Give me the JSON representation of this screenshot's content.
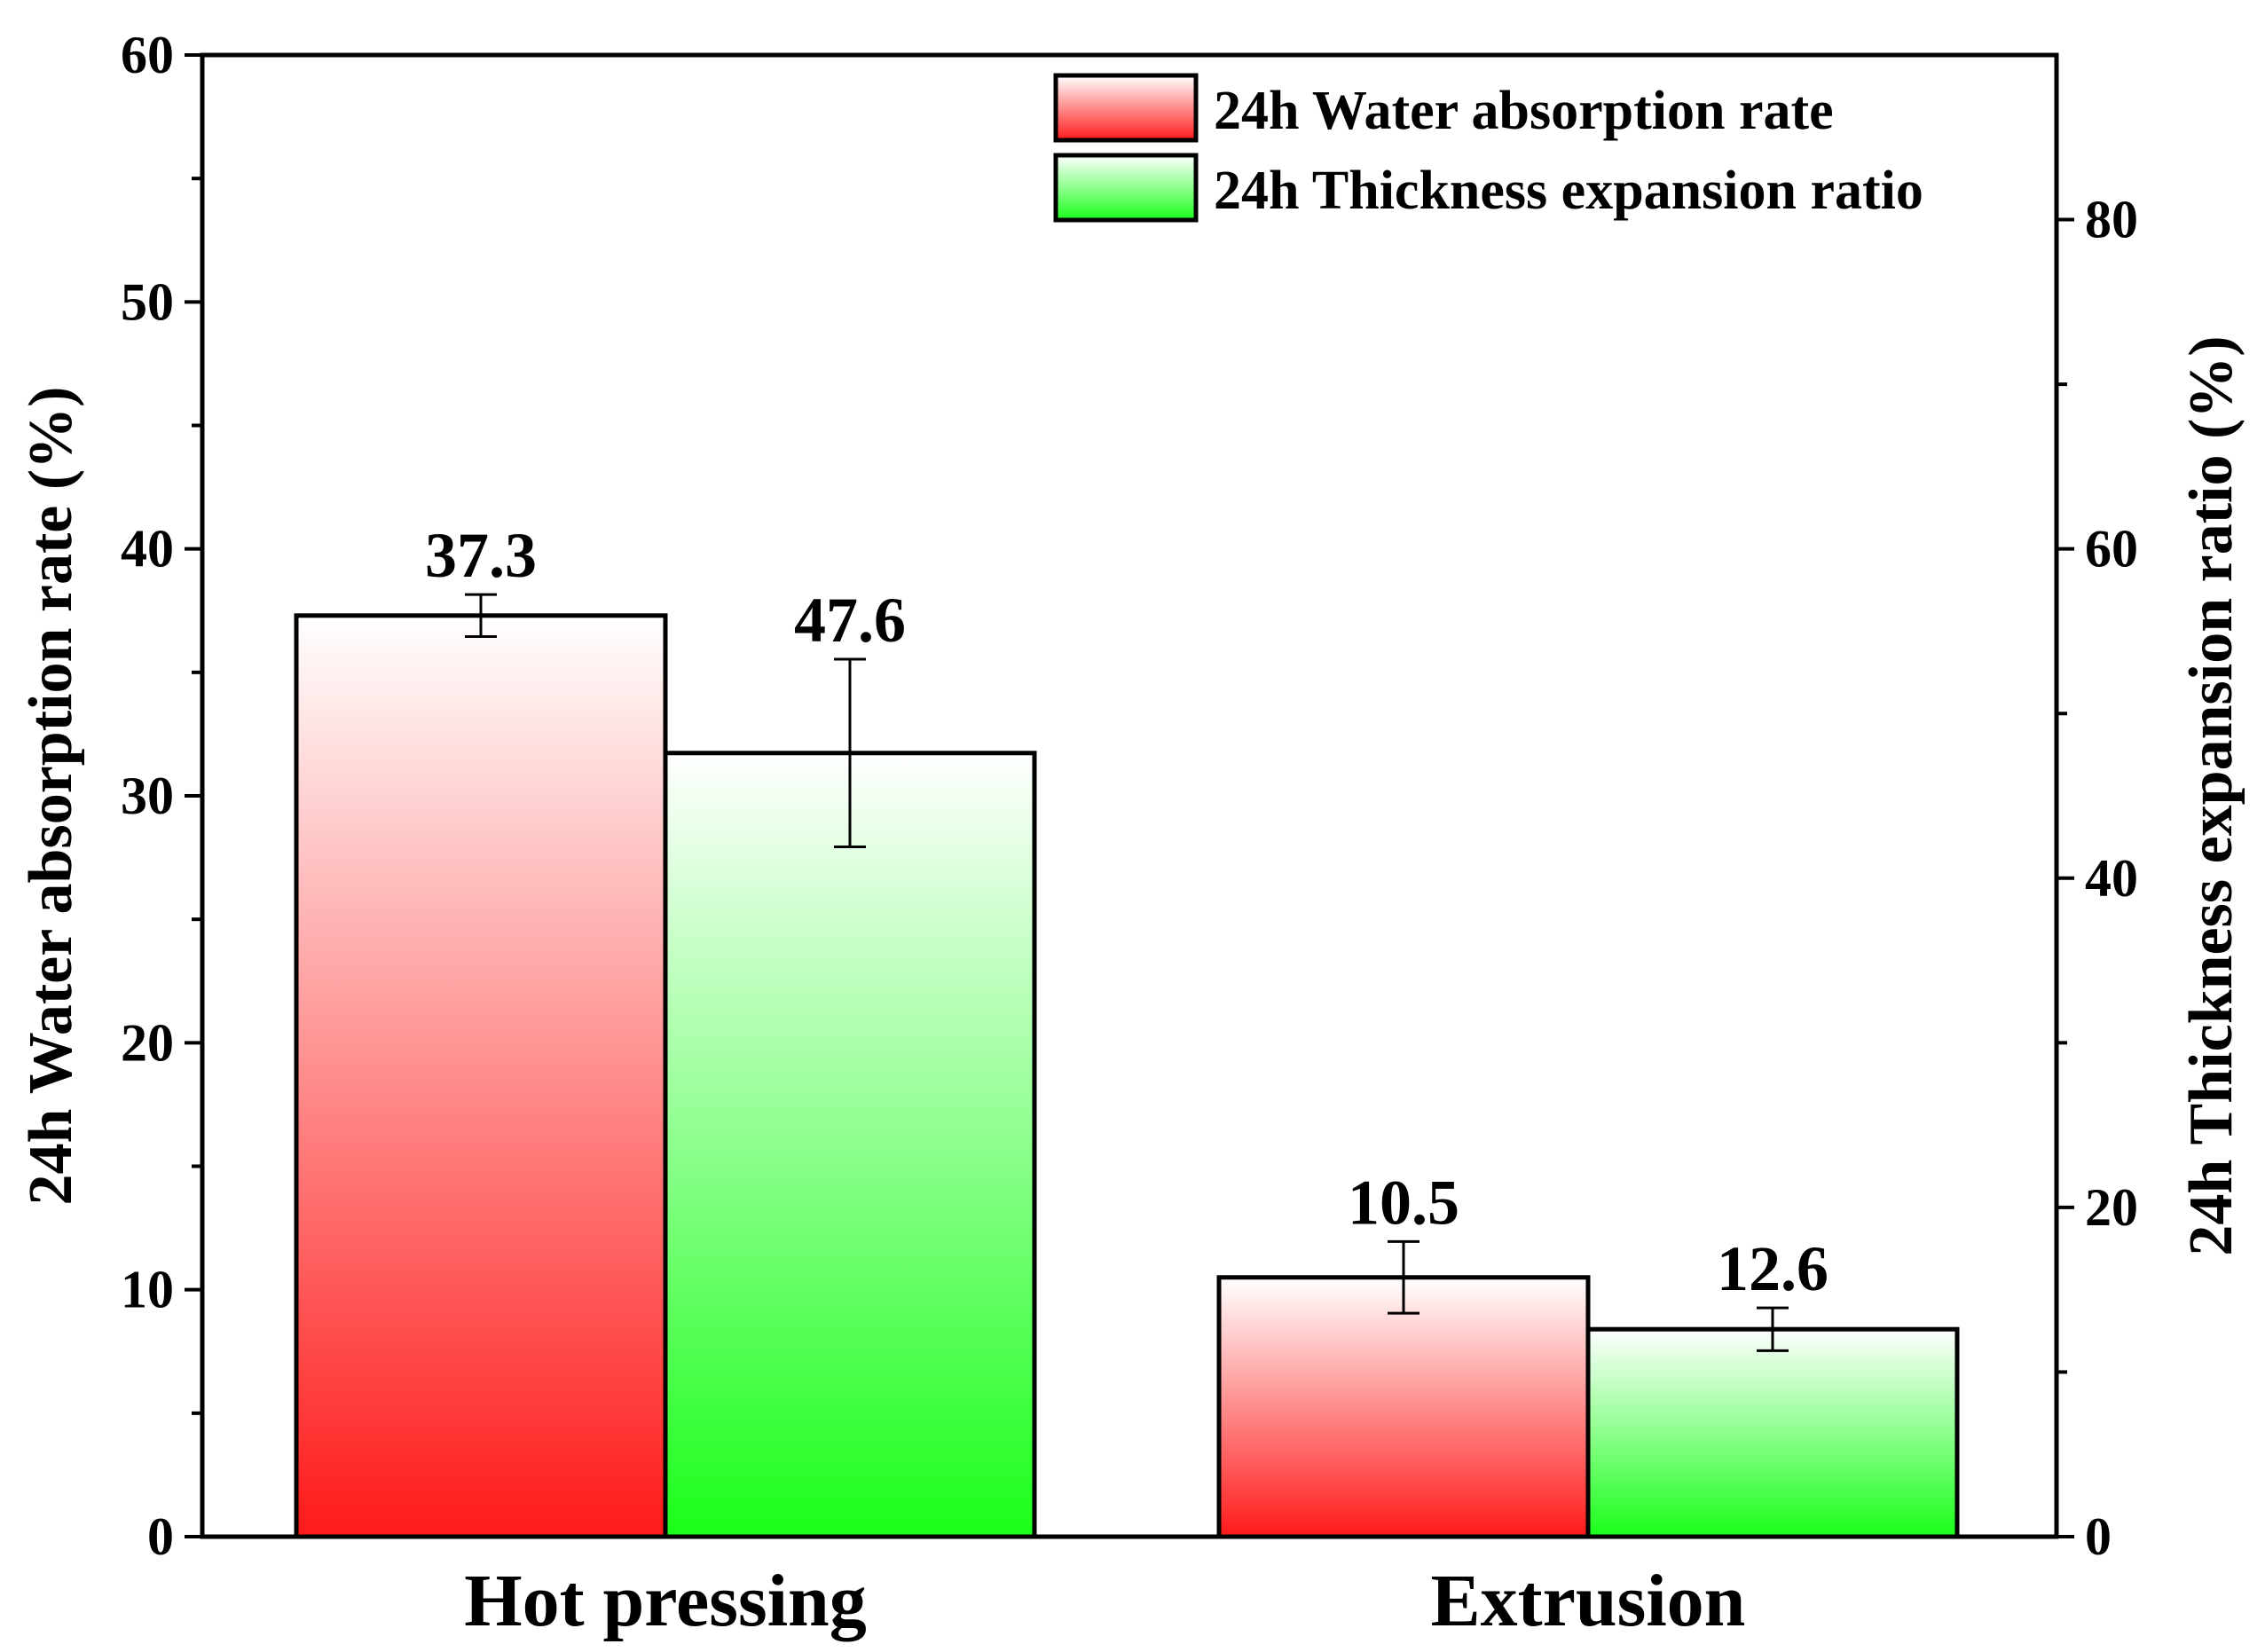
{
  "chart_data": {
    "type": "bar",
    "categories": [
      "Hot pressing",
      "Extrusion"
    ],
    "series": [
      {
        "name": "24h Water absorption rate",
        "axis": "left",
        "values": [
          37.3,
          10.5
        ],
        "errors": [
          0.85,
          1.45
        ],
        "labels": [
          "37.3",
          "10.5"
        ],
        "color_top": "#ffffff",
        "color_bottom": "#ff1a1a"
      },
      {
        "name": "24h Thickness expansion ratio",
        "axis": "right",
        "values": [
          47.6,
          12.6
        ],
        "errors": [
          5.7,
          1.3
        ],
        "labels": [
          "47.6",
          "12.6"
        ],
        "color_top": "#ffffff",
        "color_bottom": "#1aff1a"
      }
    ],
    "y_left": {
      "label": "24h Water absorption rate (%)",
      "lim": [
        0,
        60
      ],
      "ticks": [
        0,
        10,
        20,
        30,
        40,
        50,
        60
      ],
      "tick_labels": [
        "0",
        "10",
        "20",
        "30",
        "40",
        "50",
        "60"
      ]
    },
    "y_right": {
      "label": "24h Thickness expansion ratio (%)",
      "lim": [
        0,
        90
      ],
      "ticks": [
        0,
        20,
        40,
        60,
        80
      ],
      "tick_labels": [
        "0",
        "20",
        "40",
        "60",
        "80"
      ]
    },
    "legend_position": "top-right",
    "grid": false
  }
}
